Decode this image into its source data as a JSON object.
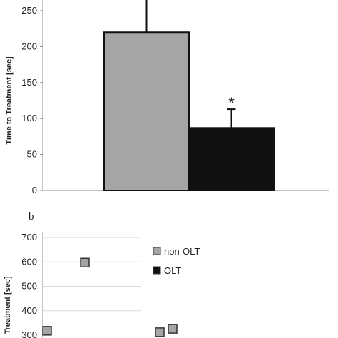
{
  "panel_b_label": "b",
  "chart_data": [
    {
      "type": "bar",
      "ylabel": "Time to Treatment [sec]",
      "ylim": [
        0,
        250
      ],
      "yticks": [
        0,
        50,
        100,
        150,
        200,
        250
      ],
      "categories": [
        "",
        ""
      ],
      "values": [
        220,
        87
      ],
      "error_upper": [
        null,
        113
      ],
      "colors": [
        "#a3a6a4",
        "#111111"
      ],
      "annotations": [
        {
          "bar_index": 1,
          "text": "*"
        }
      ],
      "grid": false
    },
    {
      "type": "scatter",
      "ylabel": "Treatment [sec]",
      "ylim": [
        300,
        700
      ],
      "yticks": [
        300,
        400,
        500,
        600,
        700
      ],
      "grid": true,
      "legend_position": "top-right",
      "series": [
        {
          "name": "non-OLT",
          "color": "#a3a6a4",
          "points": [
            {
              "x": 1,
              "y": 318
            },
            {
              "x": 2,
              "y": 597
            },
            {
              "x": 4,
              "y": 312
            },
            {
              "x": 5,
              "y": 326
            }
          ]
        },
        {
          "name": "OLT",
          "color": "#111111",
          "points": []
        }
      ]
    }
  ]
}
